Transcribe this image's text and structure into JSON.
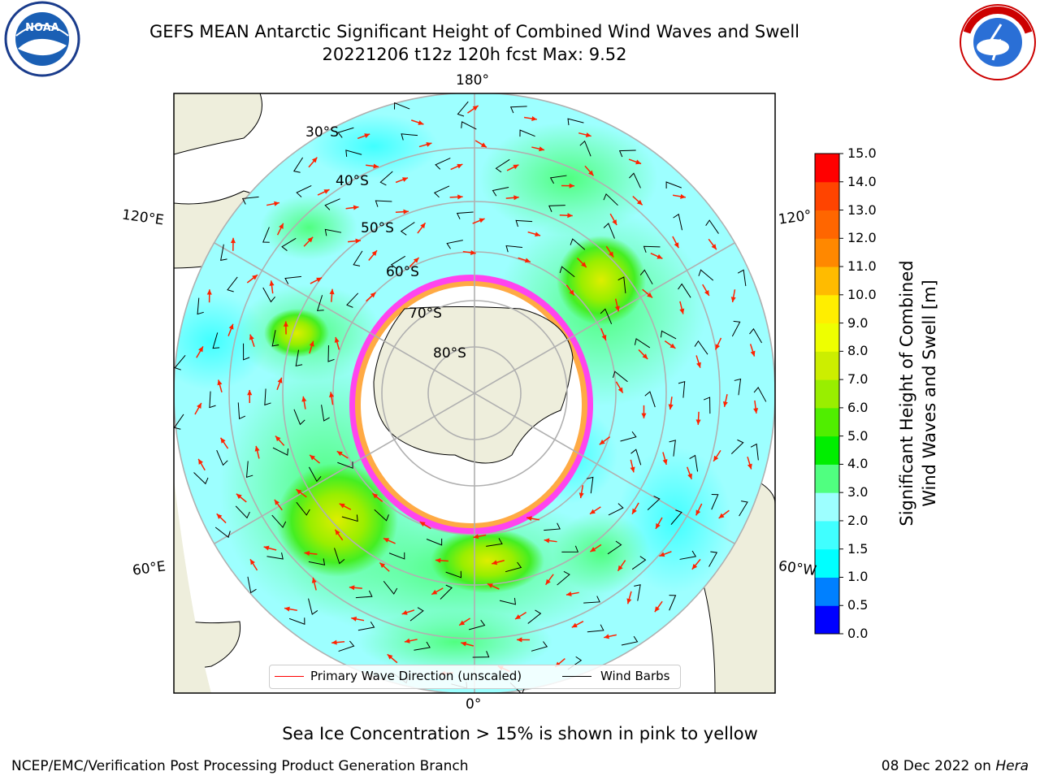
{
  "title": {
    "line1": "GEFS MEAN Antarctic Significant Height of Combined Wind Waves and Swell",
    "line2": "20221206 t12z 120h fcst   Max: 9.52"
  },
  "map": {
    "projection": "south-polar-stereographic",
    "lat_labels": [
      "30°S",
      "40°S",
      "50°S",
      "60°S",
      "70°S",
      "80°S"
    ],
    "lon_labels": {
      "top": "180°",
      "bottom": "0°",
      "left_upper": "120°E",
      "left_lower": "60°E",
      "right_upper": "120°",
      "right_lower": "60°W"
    },
    "colors": {
      "land": "#eeeedc",
      "ocean_low": "#9dffff",
      "ice_edge": "#ff44ee",
      "ice_core": "#ffffff"
    }
  },
  "legend": {
    "wave_dir": "Primary Wave Direction (unscaled)",
    "wind_barbs": "Wind Barbs"
  },
  "colorbar": {
    "label_line1": "Significant Height of Combined",
    "label_line2": "Wind Waves and Swell [m]",
    "ticks": [
      "0.0",
      "0.5",
      "1.0",
      "1.5",
      "2.0",
      "3.0",
      "4.0",
      "5.0",
      "6.0",
      "7.0",
      "8.0",
      "9.0",
      "10.0",
      "11.0",
      "12.0",
      "13.0",
      "14.0",
      "15.0"
    ],
    "colors": [
      "#0000ff",
      "#0080ff",
      "#00ffff",
      "#40ffff",
      "#9dffff",
      "#50ff80",
      "#00ee00",
      "#50ee00",
      "#99ee00",
      "#ccee00",
      "#eeff00",
      "#ffee00",
      "#ffbb00",
      "#ff8800",
      "#ff6600",
      "#ff4400",
      "#ff0000"
    ]
  },
  "logos": {
    "left": "NOAA",
    "right": "NATIONAL WEATHER SERVICE"
  },
  "notes": {
    "ice": "Sea Ice Concentration > 15% is shown in pink to yellow",
    "credit": "NCEP/EMC/Verification Post Processing Product Generation Branch",
    "date": "08 Dec 2022 on ",
    "machine": "Hera"
  }
}
